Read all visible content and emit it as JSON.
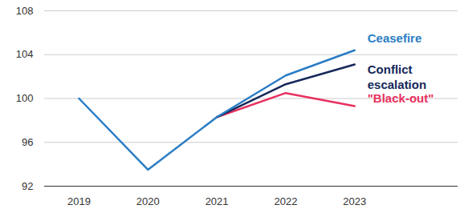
{
  "chart_data": {
    "type": "line",
    "x": [
      2019,
      2020,
      2021,
      2022,
      2023
    ],
    "series": [
      {
        "name": "Ceasefire",
        "color": "#2a7dc4",
        "values": [
          100,
          93.5,
          98.3,
          102.1,
          104.4
        ]
      },
      {
        "name": "Conflict escalation",
        "color": "#14285a",
        "values": [
          null,
          null,
          98.3,
          101.3,
          103.1
        ]
      },
      {
        "name": "\"Black-out\"",
        "color": "#e8305f",
        "values": [
          null,
          null,
          98.3,
          100.5,
          99.3
        ]
      }
    ],
    "xlim": [
      2018.5,
      2024.5
    ],
    "xticks": [
      2019,
      2020,
      2021,
      2022,
      2023
    ],
    "ylim": [
      92,
      108
    ],
    "yticks": [
      92,
      96,
      100,
      104,
      108
    ],
    "grid": true
  }
}
